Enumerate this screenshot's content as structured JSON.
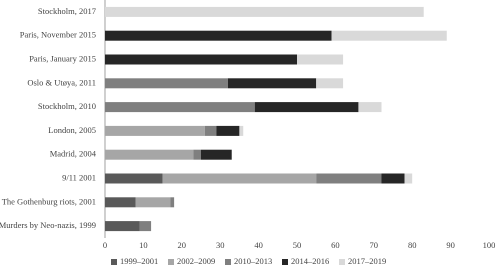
{
  "chart_data": {
    "type": "bar",
    "orientation": "horizontal",
    "stacked": true,
    "categories": [
      "Stockholm, 2017",
      "Paris, November 2015",
      "Paris, January 2015",
      "Oslo & Utøya, 2011",
      "Stockholm, 2010",
      "London, 2005",
      "Madrid, 2004",
      "9/11 2001",
      "The Gothenburg riots, 2001",
      "Murders by Neo-nazis, 1999"
    ],
    "series": [
      {
        "name": "1999–2001",
        "color": "#595959",
        "values": [
          0,
          0,
          0,
          0,
          0,
          0,
          0,
          15,
          8,
          9
        ]
      },
      {
        "name": "2002–2009",
        "color": "#a6a6a6",
        "values": [
          0,
          0,
          0,
          0,
          0,
          26,
          23,
          40,
          9,
          0
        ]
      },
      {
        "name": "2010–2013",
        "color": "#7f7f7f",
        "values": [
          0,
          0,
          0,
          32,
          39,
          3,
          2,
          17,
          1,
          3
        ]
      },
      {
        "name": "2014–2016",
        "color": "#262626",
        "values": [
          0,
          59,
          50,
          23,
          27,
          6,
          8,
          6,
          0,
          0
        ]
      },
      {
        "name": "2017–2019",
        "color": "#d9d9d9",
        "values": [
          83,
          30,
          12,
          7,
          6,
          1,
          0,
          2,
          0,
          0
        ]
      }
    ],
    "xlim": [
      0,
      100
    ],
    "xticks": [
      0,
      10,
      20,
      30,
      40,
      50,
      60,
      70,
      80,
      90,
      100
    ],
    "legend": "bottom"
  }
}
